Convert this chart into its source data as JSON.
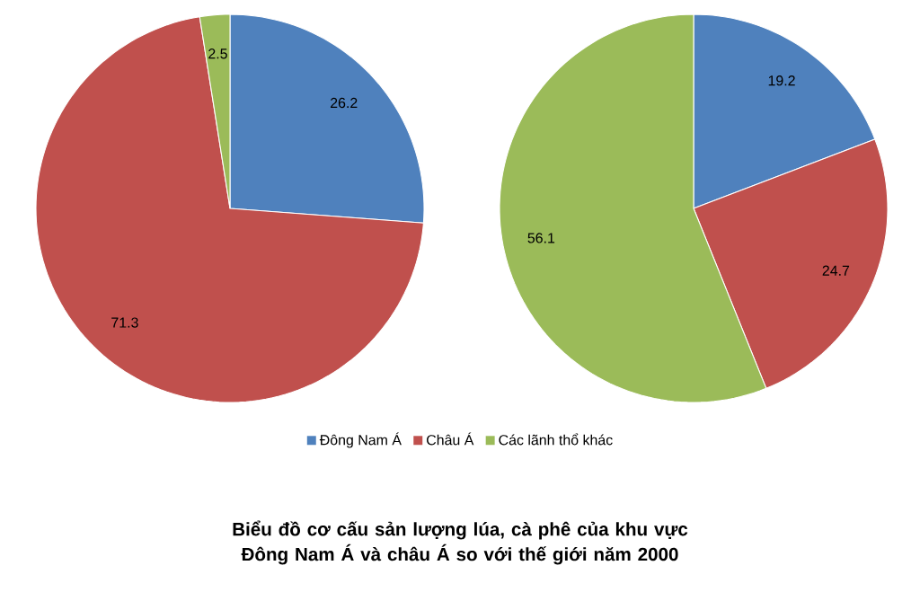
{
  "chart_data": [
    {
      "type": "pie",
      "title": "Biểu đồ cơ cấu sản lượng lúa, cà phê của khu vực Đông Nam Á và châu Á so với thế giới năm 2000",
      "categories": [
        "Đông Nam Á",
        "Châu Á",
        "Các lãnh thổ khác"
      ],
      "values": [
        26.2,
        71.3,
        2.5
      ],
      "colors": [
        "#4f81bd",
        "#c0504d",
        "#9bbb59"
      ],
      "data_labels": true,
      "legend": "bottom"
    },
    {
      "type": "pie",
      "categories": [
        null,
        null,
        null
      ],
      "values": [
        19.2,
        24.7,
        56.1
      ],
      "colors": [
        "#4f81bd",
        "#c0504d",
        "#9bbb59"
      ],
      "data_labels": true
    }
  ]
}
